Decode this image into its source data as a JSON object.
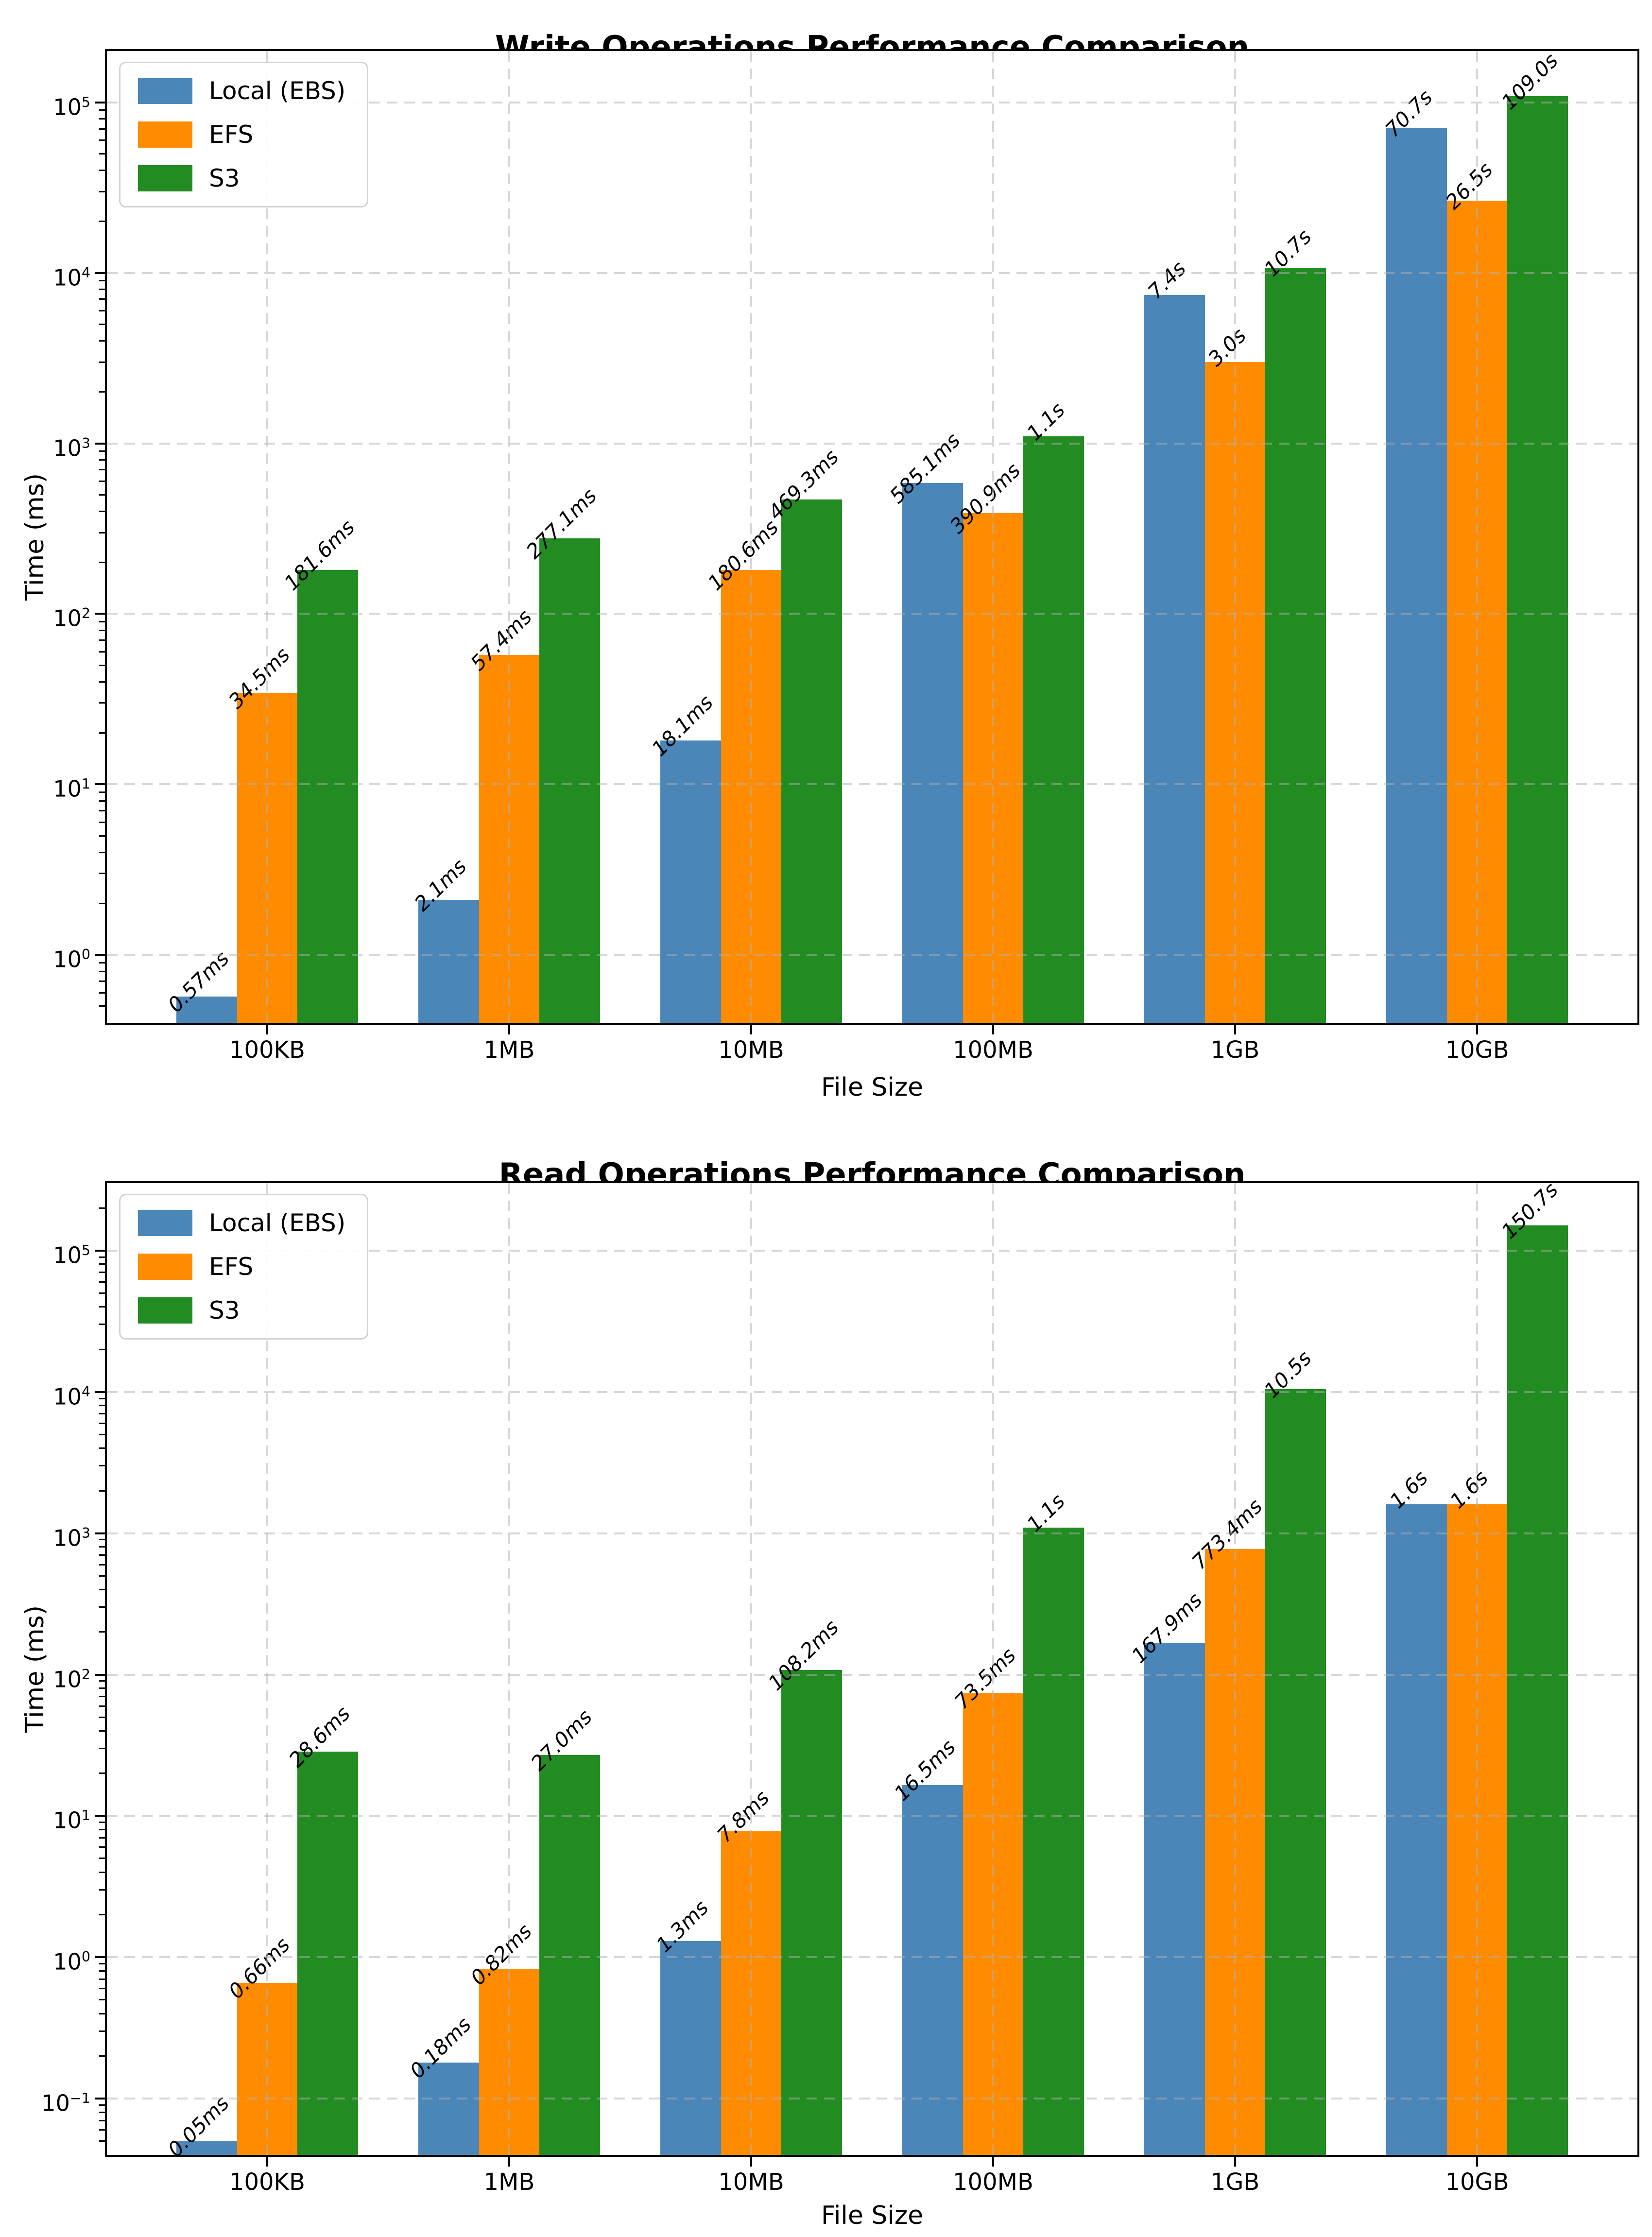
{
  "figure": {
    "background": "#ffffff"
  },
  "styles": {
    "grid_color": "#d0d0d0",
    "spine_color": "#000000",
    "text_color": "#000000",
    "legend_border": "#d2d2d2",
    "series_colors": {
      "local_ebs": "#4a86b8",
      "efs": "#ff8c00",
      "s3": "#228b22"
    }
  },
  "chart_data": [
    {
      "type": "bar",
      "title": "Write Operations Performance Comparison",
      "xlabel": "File Size",
      "ylabel": "Time (ms)",
      "y_scale": "log",
      "grid": true,
      "legend_position": "upper left",
      "categories": [
        "100KB",
        "1MB",
        "10MB",
        "100MB",
        "1GB",
        "10GB"
      ],
      "ylim": [
        0.4,
        200000
      ],
      "ytick_exponents": [
        0,
        1,
        2,
        3,
        4,
        5
      ],
      "series": [
        {
          "name": "Local (EBS)",
          "color": "#4a86b8",
          "values": [
            0.57,
            2.1,
            18.1,
            585.1,
            7400,
            70700
          ],
          "value_labels": [
            "0.57ms",
            "2.1ms",
            "18.1ms",
            "585.1ms",
            "7.4s",
            "70.7s"
          ]
        },
        {
          "name": "EFS",
          "color": "#ff8c00",
          "values": [
            34.5,
            57.4,
            180.6,
            390.9,
            3000,
            26500
          ],
          "value_labels": [
            "34.5ms",
            "57.4ms",
            "180.6ms",
            "390.9ms",
            "3.0s",
            "26.5s"
          ]
        },
        {
          "name": "S3",
          "color": "#228b22",
          "values": [
            181.6,
            277.1,
            469.3,
            1100,
            10700,
            109000
          ],
          "value_labels": [
            "181.6ms",
            "277.1ms",
            "469.3ms",
            "1.1s",
            "10.7s",
            "109.0s"
          ]
        }
      ]
    },
    {
      "type": "bar",
      "title": "Read Operations Performance Comparison",
      "xlabel": "File Size",
      "ylabel": "Time (ms)",
      "y_scale": "log",
      "grid": true,
      "legend_position": "upper left",
      "categories": [
        "100KB",
        "1MB",
        "10MB",
        "100MB",
        "1GB",
        "10GB"
      ],
      "ylim": [
        0.04,
        300000
      ],
      "ytick_exponents": [
        -1,
        0,
        1,
        2,
        3,
        4,
        5
      ],
      "series": [
        {
          "name": "Local (EBS)",
          "color": "#4a86b8",
          "values": [
            0.05,
            0.18,
            1.3,
            16.5,
            167.9,
            1600
          ],
          "value_labels": [
            "0.05ms",
            "0.18ms",
            "1.3ms",
            "16.5ms",
            "167.9ms",
            "1.6s"
          ]
        },
        {
          "name": "EFS",
          "color": "#ff8c00",
          "values": [
            0.66,
            0.82,
            7.8,
            73.5,
            773.4,
            1600
          ],
          "value_labels": [
            "0.66ms",
            "0.82ms",
            "7.8ms",
            "73.5ms",
            "773.4ms",
            "1.6s"
          ]
        },
        {
          "name": "S3",
          "color": "#228b22",
          "values": [
            28.6,
            27.0,
            108.2,
            1100,
            10500,
            150700
          ],
          "value_labels": [
            "28.6ms",
            "27.0ms",
            "108.2ms",
            "1.1s",
            "10.5s",
            "150.7s"
          ]
        }
      ]
    }
  ]
}
